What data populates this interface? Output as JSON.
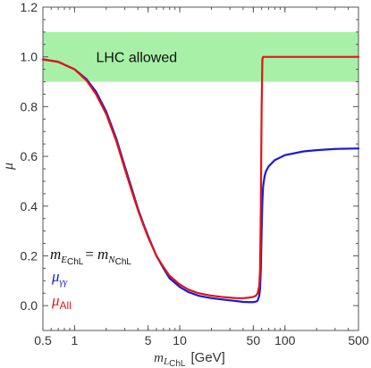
{
  "chart_data": {
    "type": "line",
    "x_scale": "log",
    "xlim": [
      0.5,
      500
    ],
    "ylim": [
      -0.1,
      1.2
    ],
    "x_ticks": [
      0.5,
      1,
      5,
      10,
      50,
      100,
      500
    ],
    "x_tick_labels": [
      "0.5",
      "1",
      "5",
      "10",
      "50",
      "100",
      "500"
    ],
    "y_ticks": [
      0.0,
      0.2,
      0.4,
      0.6,
      0.8,
      1.0,
      1.2
    ],
    "y_tick_labels": [
      "0.0",
      "0.2",
      "0.4",
      "0.6",
      "0.8",
      "1.0",
      "1.2"
    ],
    "xlabel": {
      "symbol": "m",
      "sub": "L",
      "subsub": "ChL",
      "unit": "[GeV]"
    },
    "ylabel": "μ",
    "band": {
      "y_min": 0.9,
      "y_max": 1.1,
      "label": "LHC allowed",
      "color": "#a8f0a8"
    },
    "annotation": {
      "lhs": "m",
      "lhs_sub": "E",
      "lhs_subsub": "ChL",
      "eq": "=",
      "rhs": "m",
      "rhs_sub": "N",
      "rhs_subsub": "ChL"
    },
    "series": [
      {
        "name": "μγγ",
        "label_symbol": "μ",
        "label_sub": "γγ",
        "color": "#1a1adb",
        "x": [
          0.5,
          0.7,
          1,
          1.3,
          1.6,
          2,
          2.5,
          3,
          3.5,
          4,
          4.5,
          5,
          6,
          7,
          8,
          10,
          12,
          15,
          20,
          25,
          30,
          35,
          40,
          45,
          50,
          53,
          55,
          57,
          58,
          59,
          60,
          61,
          62,
          64,
          66,
          70,
          80,
          100,
          150,
          200,
          300,
          500
        ],
        "y": [
          0.99,
          0.98,
          0.95,
          0.91,
          0.86,
          0.78,
          0.67,
          0.56,
          0.47,
          0.39,
          0.33,
          0.28,
          0.2,
          0.15,
          0.11,
          0.075,
          0.055,
          0.04,
          0.03,
          0.025,
          0.021,
          0.018,
          0.015,
          0.014,
          0.014,
          0.016,
          0.02,
          0.04,
          0.07,
          0.15,
          0.3,
          0.42,
          0.48,
          0.52,
          0.54,
          0.56,
          0.585,
          0.605,
          0.62,
          0.625,
          0.63,
          0.632
        ]
      },
      {
        "name": "μAll",
        "label_symbol": "μ",
        "label_sub": "All",
        "color": "#e01515",
        "x": [
          0.5,
          0.7,
          1,
          1.3,
          1.6,
          2,
          2.5,
          3,
          3.5,
          4,
          4.5,
          5,
          6,
          7,
          8,
          10,
          12,
          15,
          20,
          25,
          30,
          35,
          40,
          45,
          50,
          53,
          55,
          57,
          58,
          59,
          60,
          61,
          62,
          64,
          66,
          70,
          80,
          100,
          150,
          200,
          300,
          500
        ],
        "y": [
          0.99,
          0.98,
          0.95,
          0.905,
          0.85,
          0.77,
          0.66,
          0.55,
          0.46,
          0.385,
          0.325,
          0.275,
          0.2,
          0.155,
          0.12,
          0.085,
          0.065,
          0.05,
          0.04,
          0.035,
          0.032,
          0.03,
          0.03,
          0.032,
          0.035,
          0.04,
          0.05,
          0.08,
          0.15,
          0.4,
          0.8,
          0.99,
          1.0,
          1.0,
          1.0,
          1.0,
          1.0,
          1.0,
          1.0,
          1.0,
          1.0,
          1.0
        ]
      }
    ],
    "grid": false,
    "legend": "bottom-left"
  }
}
